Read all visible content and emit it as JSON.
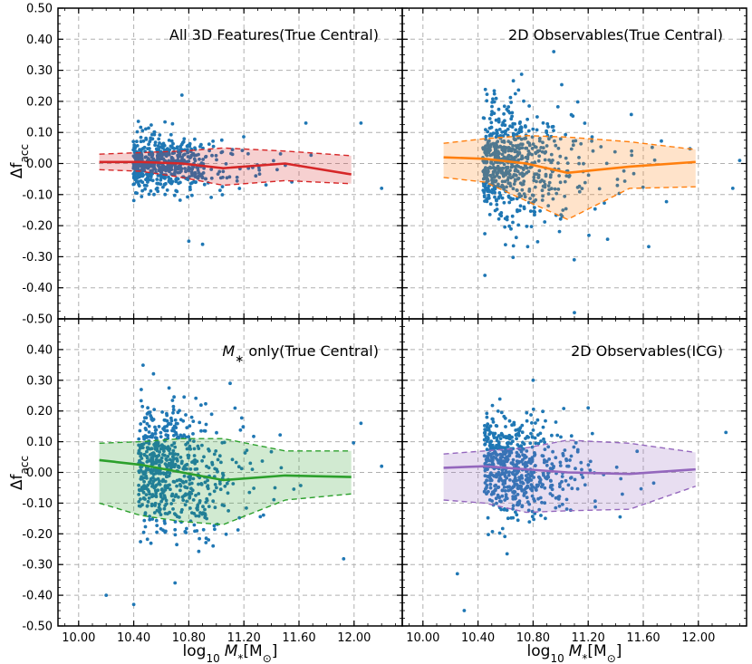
{
  "figure": {
    "xlabel_parts": [
      "log",
      "10",
      "M",
      "*",
      "[M",
      "⊙",
      "]"
    ],
    "ylabel_parts": [
      "Δf",
      "acc"
    ]
  },
  "chart_data": [
    {
      "type": "scatter",
      "title": "All 3D Features(True Central)",
      "xlim": [
        9.85,
        12.35
      ],
      "ylim": [
        -0.5,
        0.5
      ],
      "xticks": [
        "10.00",
        "10.40",
        "10.80",
        "11.20",
        "11.60",
        "12.00"
      ],
      "yticks": [
        "-0.50",
        "-0.40",
        "-0.30",
        "-0.20",
        "-0.10",
        "0.00",
        "0.10",
        "0.20",
        "0.30",
        "0.40",
        "0.50"
      ],
      "colors": {
        "line": "#d62728",
        "fill": "#d62728",
        "points": "#1f77b4"
      },
      "band_x": [
        10.15,
        10.45,
        10.75,
        11.05,
        11.5,
        11.98
      ],
      "median": [
        0.005,
        0.005,
        0.0,
        -0.015,
        0.0,
        -0.035
      ],
      "upper": [
        0.03,
        0.035,
        0.04,
        0.05,
        0.04,
        0.025
      ],
      "lower": [
        -0.02,
        -0.025,
        -0.045,
        -0.07,
        -0.055,
        -0.065
      ],
      "scatter": {
        "n": 600,
        "x_center": 10.55,
        "x_spread": 0.28,
        "y_spread": 0.045,
        "seed": 11,
        "outliers": [
          [
            10.9,
            -0.26
          ],
          [
            10.8,
            -0.25
          ],
          [
            12.05,
            0.13
          ],
          [
            12.2,
            -0.08
          ],
          [
            10.75,
            0.22
          ],
          [
            11.65,
            0.13
          ]
        ]
      }
    },
    {
      "type": "scatter",
      "title": "2D Observables(True Central)",
      "xlim": [
        9.85,
        12.35
      ],
      "ylim": [
        -0.5,
        0.5
      ],
      "xticks": [
        "10.00",
        "10.40",
        "10.80",
        "11.20",
        "11.60",
        "12.00"
      ],
      "yticks": [
        "-0.50",
        "-0.40",
        "-0.30",
        "-0.20",
        "-0.10",
        "0.00",
        "0.10",
        "0.20",
        "0.30",
        "0.40",
        "0.50"
      ],
      "colors": {
        "line": "#ff7f0e",
        "fill": "#ff7f0e",
        "points": "#1f77b4"
      },
      "band_x": [
        10.15,
        10.45,
        10.75,
        11.05,
        11.5,
        11.98
      ],
      "median": [
        0.02,
        0.015,
        0.0,
        -0.03,
        -0.01,
        0.005
      ],
      "upper": [
        0.065,
        0.08,
        0.09,
        0.085,
        0.07,
        0.045
      ],
      "lower": [
        -0.045,
        -0.06,
        -0.12,
        -0.18,
        -0.08,
        -0.075
      ],
      "scatter": {
        "n": 650,
        "x_center": 10.6,
        "x_spread": 0.3,
        "y_spread": 0.09,
        "seed": 23,
        "outliers": [
          [
            10.95,
            0.36
          ],
          [
            10.45,
            -0.36
          ],
          [
            11.1,
            -0.48
          ],
          [
            12.3,
            0.01
          ],
          [
            12.25,
            -0.08
          ]
        ]
      }
    },
    {
      "type": "scatter",
      "title": "M∗ only(True Central)",
      "title_parts": [
        "M",
        "∗",
        " only(True Central)"
      ],
      "xlim": [
        9.85,
        12.35
      ],
      "ylim": [
        -0.5,
        0.5
      ],
      "xticks": [
        "10.00",
        "10.40",
        "10.80",
        "11.20",
        "11.60",
        "12.00"
      ],
      "yticks": [
        "-0.50",
        "-0.40",
        "-0.30",
        "-0.20",
        "-0.10",
        "0.00",
        "0.10",
        "0.20",
        "0.30",
        "0.40",
        "0.50"
      ],
      "colors": {
        "line": "#2ca02c",
        "fill": "#2ca02c",
        "points": "#1f77b4"
      },
      "band_x": [
        10.15,
        10.45,
        10.75,
        11.05,
        11.5,
        11.98
      ],
      "median": [
        0.04,
        0.025,
        0.0,
        -0.025,
        -0.01,
        -0.015
      ],
      "upper": [
        0.095,
        0.1,
        0.11,
        0.11,
        0.07,
        0.07
      ],
      "lower": [
        -0.1,
        -0.14,
        -0.16,
        -0.17,
        -0.09,
        -0.07
      ],
      "scatter": {
        "n": 650,
        "x_center": 10.6,
        "x_spread": 0.3,
        "y_spread": 0.1,
        "seed": 37,
        "outliers": [
          [
            10.4,
            -0.43
          ],
          [
            10.7,
            -0.36
          ],
          [
            11.1,
            0.29
          ],
          [
            12.05,
            0.16
          ],
          [
            12.2,
            0.02
          ],
          [
            10.2,
            -0.4
          ]
        ]
      }
    },
    {
      "type": "scatter",
      "title": "2D Observables(ICG)",
      "xlim": [
        9.85,
        12.35
      ],
      "ylim": [
        -0.5,
        0.5
      ],
      "xticks": [
        "10.00",
        "10.40",
        "10.80",
        "11.20",
        "11.60",
        "12.00"
      ],
      "yticks": [
        "-0.50",
        "-0.40",
        "-0.30",
        "-0.20",
        "-0.10",
        "0.00",
        "0.10",
        "0.20",
        "0.30",
        "0.40",
        "0.50"
      ],
      "colors": {
        "line": "#9467bd",
        "fill": "#9467bd",
        "points": "#1f77b4"
      },
      "band_x": [
        10.15,
        10.45,
        10.75,
        11.05,
        11.5,
        11.98
      ],
      "median": [
        0.015,
        0.02,
        0.01,
        0.0,
        -0.005,
        0.01
      ],
      "upper": [
        0.06,
        0.07,
        0.08,
        0.105,
        0.095,
        0.065
      ],
      "lower": [
        -0.09,
        -0.1,
        -0.13,
        -0.125,
        -0.12,
        -0.045
      ],
      "scatter": {
        "n": 600,
        "x_center": 10.6,
        "x_spread": 0.28,
        "y_spread": 0.085,
        "seed": 53,
        "outliers": [
          [
            10.3,
            -0.45
          ],
          [
            10.8,
            0.3
          ],
          [
            11.2,
            0.21
          ],
          [
            12.2,
            0.13
          ],
          [
            10.25,
            -0.33
          ]
        ]
      }
    }
  ]
}
